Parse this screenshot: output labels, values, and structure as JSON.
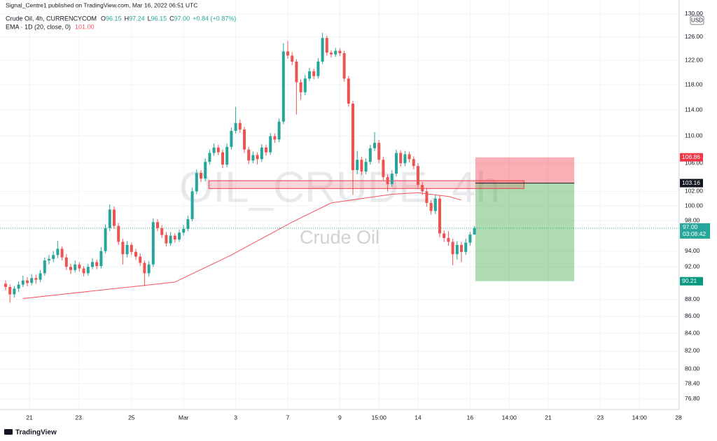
{
  "header": {
    "published": "Signal_Centre1 published on TradingView.com, Mar 16, 2022 06:51 UTC",
    "symbol": "Crude Oil, 4h, CURRENCYCOM",
    "ohlc": [
      {
        "label": "O",
        "value": "96.15"
      },
      {
        "label": "H",
        "value": "97.24"
      },
      {
        "label": "L",
        "value": "96.15"
      },
      {
        "label": "C",
        "value": "97.00"
      }
    ],
    "change": "+0.84 (+0.87%)",
    "ema_label": "EMA · 1D (20, close, 0)",
    "ema_value": "101.00"
  },
  "watermark": {
    "symbol": "OIL_CRUDE, 4h",
    "name": "Crude Oil"
  },
  "footer": {
    "brand": "TradingView"
  },
  "chart_data": {
    "type": "candlestick",
    "log_scale": true,
    "grid": true,
    "currency": "USD",
    "up_color": "#26a69a",
    "down_color": "#ef5350",
    "xlim": [
      -1.29,
      155.16
    ],
    "ylim": [
      75.7,
      132.5
    ],
    "xticks": [
      {
        "value": 5.5,
        "label": "21"
      },
      {
        "value": 16.8,
        "label": "23"
      },
      {
        "value": 29,
        "label": "25"
      },
      {
        "value": 41,
        "label": "Mar"
      },
      {
        "value": 53,
        "label": "3"
      },
      {
        "value": 65,
        "label": "7"
      },
      {
        "value": 77,
        "label": "9"
      },
      {
        "value": 86,
        "label": "15:00"
      },
      {
        "value": 95,
        "label": "14"
      },
      {
        "value": 107,
        "label": "16"
      },
      {
        "value": 116,
        "label": "14:00"
      },
      {
        "value": 125,
        "label": "21"
      },
      {
        "value": 137,
        "label": "23"
      },
      {
        "value": 146,
        "label": "14:00"
      },
      {
        "value": 155,
        "label": "28"
      }
    ],
    "yticks": [
      {
        "value": 130,
        "label": "130.00"
      },
      {
        "value": 126,
        "label": "126.00"
      },
      {
        "value": 122,
        "label": "122.00"
      },
      {
        "value": 118,
        "label": "118.00"
      },
      {
        "value": 114,
        "label": "114.00"
      },
      {
        "value": 110,
        "label": "110.00"
      },
      {
        "value": 106,
        "label": "106.00"
      },
      {
        "value": 102,
        "label": "102.00"
      },
      {
        "value": 100,
        "label": "100.00"
      },
      {
        "value": 98,
        "label": "98.00"
      },
      {
        "value": 94,
        "label": "94.00"
      },
      {
        "value": 92,
        "label": "92.00"
      },
      {
        "value": 88,
        "label": "88.00"
      },
      {
        "value": 86,
        "label": "86.00"
      },
      {
        "value": 84,
        "label": "84.00"
      },
      {
        "value": 82,
        "label": "82.00"
      },
      {
        "value": 80,
        "label": "80.00"
      },
      {
        "value": 78.4,
        "label": "78.40"
      },
      {
        "value": 76.8,
        "label": "76.80"
      }
    ],
    "candles": [
      [
        89.9,
        90.3,
        89.1,
        89.5
      ],
      [
        89.5,
        89.8,
        87.6,
        88.6
      ],
      [
        88.6,
        89.6,
        88.2,
        89.3
      ],
      [
        89.3,
        90.2,
        88.9,
        89.8
      ],
      [
        89.8,
        90.9,
        89.5,
        90.3
      ],
      [
        90.3,
        90.7,
        89.6,
        90.0
      ],
      [
        90.0,
        91.1,
        89.7,
        90.6
      ],
      [
        90.6,
        91.0,
        89.9,
        90.4
      ],
      [
        90.4,
        91.6,
        90.1,
        91.2
      ],
      [
        91.2,
        93.2,
        90.9,
        92.8
      ],
      [
        92.8,
        93.5,
        92.3,
        93.0
      ],
      [
        93.0,
        94.0,
        92.6,
        93.5
      ],
      [
        93.5,
        95.3,
        93.1,
        94.3
      ],
      [
        94.3,
        94.6,
        92.8,
        93.2
      ],
      [
        93.2,
        93.6,
        91.6,
        92.0
      ],
      [
        92.0,
        92.4,
        91.1,
        91.6
      ],
      [
        91.6,
        92.8,
        91.3,
        92.3
      ],
      [
        92.3,
        92.6,
        91.4,
        91.8
      ],
      [
        91.8,
        92.1,
        90.8,
        91.2
      ],
      [
        91.2,
        92.4,
        90.9,
        92.0
      ],
      [
        92.0,
        93.1,
        91.7,
        92.6
      ],
      [
        92.6,
        92.9,
        91.7,
        92.1
      ],
      [
        92.1,
        94.5,
        91.8,
        94.0
      ],
      [
        94.0,
        97.5,
        93.7,
        97.0
      ],
      [
        97.0,
        100.2,
        96.6,
        99.5
      ],
      [
        99.5,
        99.9,
        96.9,
        97.3
      ],
      [
        97.3,
        97.7,
        94.8,
        95.2
      ],
      [
        95.2,
        95.6,
        92.3,
        93.6
      ],
      [
        93.6,
        95.3,
        93.2,
        94.8
      ],
      [
        94.8,
        95.1,
        93.5,
        93.9
      ],
      [
        93.9,
        94.3,
        92.9,
        93.3
      ],
      [
        93.3,
        93.7,
        92.1,
        92.5
      ],
      [
        92.5,
        92.8,
        89.6,
        91.2
      ],
      [
        91.2,
        92.7,
        90.8,
        92.3
      ],
      [
        92.3,
        98.3,
        92.0,
        97.8
      ],
      [
        97.8,
        98.2,
        96.6,
        97.0
      ],
      [
        97.0,
        97.4,
        95.7,
        96.1
      ],
      [
        96.1,
        96.5,
        94.6,
        95.0
      ],
      [
        95.0,
        96.5,
        94.7,
        96.0
      ],
      [
        96.0,
        96.3,
        95.1,
        95.5
      ],
      [
        95.5,
        96.8,
        95.2,
        96.4
      ],
      [
        96.4,
        97.4,
        96.0,
        96.9
      ],
      [
        96.9,
        98.7,
        96.6,
        98.2
      ],
      [
        98.2,
        102.5,
        97.9,
        102.0
      ],
      [
        102.0,
        105.1,
        101.6,
        104.6
      ],
      [
        104.6,
        105.0,
        103.3,
        103.8
      ],
      [
        103.8,
        106.7,
        103.4,
        106.2
      ],
      [
        106.2,
        108.0,
        105.8,
        107.5
      ],
      [
        107.5,
        108.9,
        107.1,
        108.3
      ],
      [
        108.3,
        108.7,
        107.2,
        107.6
      ],
      [
        107.6,
        108.0,
        105.3,
        105.8
      ],
      [
        105.8,
        108.9,
        105.4,
        108.4
      ],
      [
        108.4,
        111.3,
        108.0,
        110.8
      ],
      [
        110.8,
        114.5,
        110.4,
        112.0
      ],
      [
        112.0,
        112.5,
        110.5,
        111.0
      ],
      [
        111.0,
        111.4,
        107.5,
        108.0
      ],
      [
        108.0,
        108.4,
        105.9,
        106.4
      ],
      [
        106.4,
        107.7,
        106.0,
        107.2
      ],
      [
        107.2,
        107.6,
        105.8,
        106.6
      ],
      [
        106.6,
        108.8,
        106.2,
        108.3
      ],
      [
        108.3,
        108.7,
        107.1,
        107.6
      ],
      [
        107.6,
        110.5,
        107.2,
        110.0
      ],
      [
        110.0,
        110.4,
        109.0,
        109.5
      ],
      [
        109.5,
        112.7,
        109.1,
        112.2
      ],
      [
        112.2,
        124.9,
        111.8,
        123.5
      ],
      [
        123.5,
        125.3,
        122.3,
        122.8
      ],
      [
        122.8,
        123.4,
        121.2,
        121.8
      ],
      [
        121.8,
        122.2,
        113.3,
        118.4
      ],
      [
        118.4,
        118.9,
        115.6,
        116.8
      ],
      [
        116.8,
        119.6,
        116.3,
        119.0
      ],
      [
        119.0,
        120.8,
        118.6,
        120.2
      ],
      [
        120.2,
        120.6,
        118.9,
        119.4
      ],
      [
        119.4,
        122.4,
        119.0,
        121.8
      ],
      [
        121.8,
        126.7,
        121.4,
        125.8
      ],
      [
        125.8,
        126.2,
        122.8,
        123.3
      ],
      [
        123.3,
        123.7,
        122.5,
        123.0
      ],
      [
        123.0,
        124.1,
        122.6,
        123.6
      ],
      [
        123.6,
        124.0,
        122.7,
        123.2
      ],
      [
        123.2,
        123.6,
        118.5,
        119.0
      ],
      [
        119.0,
        119.4,
        114.5,
        115.0
      ],
      [
        115.0,
        115.4,
        101.5,
        105.0
      ],
      [
        105.0,
        107.8,
        104.4,
        106.5
      ],
      [
        106.5,
        106.9,
        104.3,
        104.8
      ],
      [
        104.8,
        106.7,
        104.4,
        106.2
      ],
      [
        106.2,
        108.7,
        105.8,
        108.2
      ],
      [
        108.2,
        110.6,
        107.8,
        109.0
      ],
      [
        109.0,
        109.4,
        106.0,
        106.5
      ],
      [
        106.5,
        106.9,
        103.5,
        104.0
      ],
      [
        104.0,
        104.4,
        102.0,
        103.0
      ],
      [
        103.0,
        105.0,
        102.6,
        104.5
      ],
      [
        104.5,
        108.0,
        104.1,
        107.5
      ],
      [
        107.5,
        107.9,
        105.5,
        106.0
      ],
      [
        106.0,
        107.8,
        105.6,
        107.3
      ],
      [
        107.3,
        107.7,
        106.1,
        106.6
      ],
      [
        106.6,
        107.0,
        105.1,
        105.6
      ],
      [
        105.6,
        106.0,
        102.4,
        102.9
      ],
      [
        102.9,
        103.3,
        101.5,
        102.0
      ],
      [
        102.0,
        102.4,
        99.9,
        100.4
      ],
      [
        100.4,
        100.8,
        98.8,
        99.3
      ],
      [
        99.3,
        101.5,
        98.9,
        101.0
      ],
      [
        101.0,
        101.4,
        95.8,
        96.3
      ],
      [
        96.3,
        96.7,
        95.2,
        95.7
      ],
      [
        95.7,
        96.6,
        94.7,
        95.2
      ],
      [
        95.2,
        95.6,
        92.2,
        93.6
      ],
      [
        93.6,
        95.3,
        92.9,
        94.8
      ],
      [
        94.8,
        95.2,
        92.6,
        93.9
      ],
      [
        93.9,
        95.6,
        93.5,
        95.1
      ],
      [
        95.1,
        96.5,
        94.7,
        96.15
      ],
      [
        96.15,
        97.24,
        96.15,
        97.0
      ]
    ],
    "ema": {
      "color": "#f7525f",
      "x": [
        4,
        39,
        52,
        66,
        75,
        89,
        95,
        102,
        105
      ],
      "values": [
        88.1,
        90.1,
        93.5,
        97.8,
        100.4,
        101.6,
        101.8,
        101.3,
        100.8
      ]
    },
    "zone": {
      "x": [
        46.8,
        119.4
      ],
      "y": [
        102.4,
        103.5
      ]
    },
    "position": {
      "x": [
        108.2,
        131
      ],
      "entry": 103.16,
      "stop": 106.86,
      "target": 90.21
    },
    "last_price": {
      "value": 97,
      "label": "97.00",
      "countdown": "03:08:42"
    }
  }
}
